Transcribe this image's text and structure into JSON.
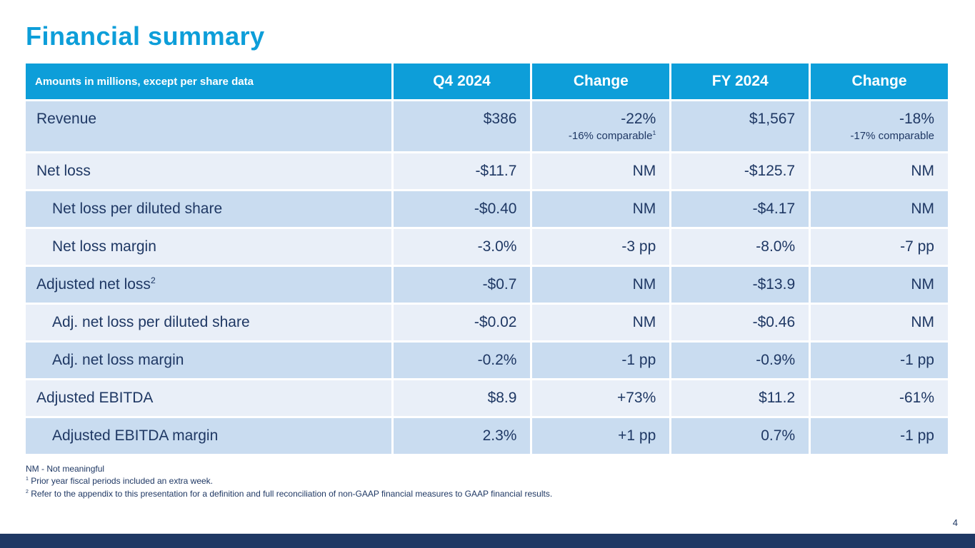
{
  "slide": {
    "title": "Financial summary",
    "page_number": "4"
  },
  "table": {
    "header": [
      "Amounts in millions, except per share data",
      "Q4 2024",
      "Change",
      "FY 2024",
      "Change"
    ],
    "rows": [
      {
        "label": "Revenue",
        "label_sup": "",
        "indent": false,
        "cells": [
          {
            "main": "$386",
            "sub": "",
            "sub_sup": ""
          },
          {
            "main": "-22%",
            "sub": "-16% comparable",
            "sub_sup": "1"
          },
          {
            "main": "$1,567",
            "sub": "",
            "sub_sup": ""
          },
          {
            "main": "-18%",
            "sub": "-17% comparable",
            "sub_sup": ""
          }
        ]
      },
      {
        "label": "Net loss",
        "label_sup": "",
        "indent": false,
        "cells": [
          {
            "main": "-$11.7",
            "sub": "",
            "sub_sup": ""
          },
          {
            "main": "NM",
            "sub": "",
            "sub_sup": ""
          },
          {
            "main": "-$125.7",
            "sub": "",
            "sub_sup": ""
          },
          {
            "main": "NM",
            "sub": "",
            "sub_sup": ""
          }
        ]
      },
      {
        "label": "Net loss per diluted share",
        "label_sup": "",
        "indent": true,
        "cells": [
          {
            "main": "-$0.40",
            "sub": "",
            "sub_sup": ""
          },
          {
            "main": "NM",
            "sub": "",
            "sub_sup": ""
          },
          {
            "main": "-$4.17",
            "sub": "",
            "sub_sup": ""
          },
          {
            "main": "NM",
            "sub": "",
            "sub_sup": ""
          }
        ]
      },
      {
        "label": "Net loss margin",
        "label_sup": "",
        "indent": true,
        "cells": [
          {
            "main": "-3.0%",
            "sub": "",
            "sub_sup": ""
          },
          {
            "main": "-3 pp",
            "sub": "",
            "sub_sup": ""
          },
          {
            "main": "-8.0%",
            "sub": "",
            "sub_sup": ""
          },
          {
            "main": "-7 pp",
            "sub": "",
            "sub_sup": ""
          }
        ]
      },
      {
        "label": "Adjusted net loss",
        "label_sup": "2",
        "indent": false,
        "cells": [
          {
            "main": "-$0.7",
            "sub": "",
            "sub_sup": ""
          },
          {
            "main": "NM",
            "sub": "",
            "sub_sup": ""
          },
          {
            "main": "-$13.9",
            "sub": "",
            "sub_sup": ""
          },
          {
            "main": "NM",
            "sub": "",
            "sub_sup": ""
          }
        ]
      },
      {
        "label": "Adj. net loss per diluted share",
        "label_sup": "",
        "indent": true,
        "cells": [
          {
            "main": "-$0.02",
            "sub": "",
            "sub_sup": ""
          },
          {
            "main": "NM",
            "sub": "",
            "sub_sup": ""
          },
          {
            "main": "-$0.46",
            "sub": "",
            "sub_sup": ""
          },
          {
            "main": "NM",
            "sub": "",
            "sub_sup": ""
          }
        ]
      },
      {
        "label": "Adj. net loss margin",
        "label_sup": "",
        "indent": true,
        "cells": [
          {
            "main": "-0.2%",
            "sub": "",
            "sub_sup": ""
          },
          {
            "main": "-1 pp",
            "sub": "",
            "sub_sup": ""
          },
          {
            "main": "-0.9%",
            "sub": "",
            "sub_sup": ""
          },
          {
            "main": "-1 pp",
            "sub": "",
            "sub_sup": ""
          }
        ]
      },
      {
        "label": "Adjusted EBITDA",
        "label_sup": "",
        "indent": false,
        "cells": [
          {
            "main": "$8.9",
            "sub": "",
            "sub_sup": ""
          },
          {
            "main": "+73%",
            "sub": "",
            "sub_sup": ""
          },
          {
            "main": "$11.2",
            "sub": "",
            "sub_sup": ""
          },
          {
            "main": "-61%",
            "sub": "",
            "sub_sup": ""
          }
        ]
      },
      {
        "label": "Adjusted EBITDA margin",
        "label_sup": "",
        "indent": true,
        "cells": [
          {
            "main": "2.3%",
            "sub": "",
            "sub_sup": ""
          },
          {
            "main": "+1 pp",
            "sub": "",
            "sub_sup": ""
          },
          {
            "main": "0.7%",
            "sub": "",
            "sub_sup": ""
          },
          {
            "main": "-1 pp",
            "sub": "",
            "sub_sup": ""
          }
        ]
      }
    ]
  },
  "footnotes": {
    "nm": "NM - Not meaningful",
    "fn1_sup": "1",
    "fn1_text": " Prior year fiscal periods included an extra week.",
    "fn2_sup": "2",
    "fn2_text": " Refer to the appendix to this presentation for a definition and full reconciliation of non-GAAP financial measures to GAAP financial results."
  },
  "colors": {
    "accent_blue": "#0d9ed9",
    "row_dark": "#c9dcf0",
    "row_light": "#e9eff8",
    "text_navy": "#1f3864",
    "footer_bar": "#1f3864"
  }
}
